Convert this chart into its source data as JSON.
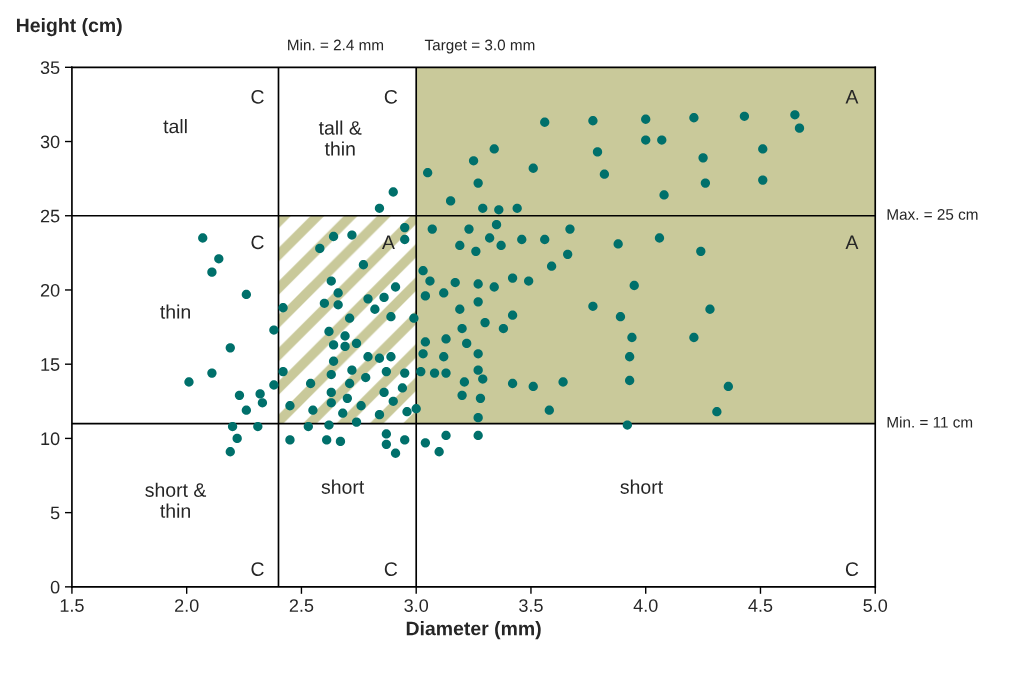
{
  "chart_data": {
    "type": "scatter",
    "xlabel": "Diameter (mm)",
    "ylabel": "Height (cm)",
    "xlim": [
      1.5,
      5.0
    ],
    "ylim": [
      0,
      35
    ],
    "xticks": [
      1.5,
      {
        "value": 2,
        "label": "2.0"
      },
      2.5,
      {
        "value": 3,
        "label": "3.0"
      },
      3.5,
      {
        "value": 4,
        "label": "4.0"
      },
      4.5,
      {
        "value": 5,
        "label": "5.0"
      }
    ],
    "yticks": [
      0,
      5,
      10,
      15,
      20,
      25,
      30,
      35
    ],
    "grid": false,
    "legend": false,
    "marker": "circle",
    "ref_lines": [
      {
        "axis": "x",
        "value": 2.4,
        "label": "Min. = 2.4 mm",
        "color": "#000000"
      },
      {
        "axis": "x",
        "value": 3.0,
        "label": "Target = 3.0 mm",
        "color": "#000000"
      },
      {
        "axis": "y",
        "value": 25,
        "label": "Max. = 25 cm",
        "color": "#000000"
      },
      {
        "axis": "y",
        "value": 11,
        "label": "Min. = 11 cm",
        "color": "#000000"
      }
    ],
    "bands": [
      {
        "axis": "x",
        "from": 3.0,
        "to": 5.0,
        "color": "#c9c99a"
      },
      {
        "axis": "x",
        "from": 2.4,
        "to": 3.0,
        "color": "#c9c99a"
      }
    ],
    "annotations": [
      "tall",
      "C",
      "tall &\nthin",
      "C",
      "A",
      "C",
      "A",
      "A",
      "thin",
      "short &\nthin",
      "short",
      "short",
      "C",
      "C",
      "C"
    ],
    "series": [
      {
        "color": "#00706b",
        "x": [
          2.07,
          2.14,
          2.11,
          2.26,
          2.38,
          2.19,
          2.11,
          2.01,
          2.23,
          2.32,
          2.33,
          2.26,
          2.38,
          2.2,
          2.31,
          2.22,
          2.19,
          2.42,
          2.42,
          2.45,
          2.45,
          2.58,
          2.64,
          2.72,
          2.77,
          2.63,
          2.66,
          2.6,
          2.66,
          2.71,
          2.79,
          2.82,
          2.86,
          2.91,
          2.89,
          2.95,
          2.95,
          2.99,
          2.62,
          2.69,
          2.64,
          2.69,
          2.74,
          2.64,
          2.79,
          2.84,
          2.89,
          2.72,
          2.63,
          2.54,
          2.71,
          2.78,
          2.87,
          2.95,
          2.63,
          2.7,
          2.86,
          2.94,
          2.63,
          2.76,
          2.9,
          2.55,
          2.68,
          2.84,
          2.96,
          3.0,
          2.53,
          2.62,
          2.74,
          2.61,
          2.67,
          2.87,
          2.87,
          2.95,
          2.91,
          2.9,
          2.84,
          3.05,
          3.27,
          3.15,
          3.29,
          3.36,
          3.44,
          3.51,
          3.25,
          3.34,
          3.07,
          3.23,
          3.35,
          3.32,
          3.19,
          3.37,
          3.46,
          3.56,
          3.26,
          3.03,
          3.06,
          3.17,
          3.27,
          3.34,
          3.42,
          3.49,
          3.59,
          3.04,
          3.12,
          3.27,
          3.19,
          3.42,
          3.3,
          3.38,
          3.2,
          3.04,
          3.13,
          3.22,
          3.03,
          3.12,
          3.27,
          3.02,
          3.08,
          3.13,
          3.27,
          3.21,
          3.29,
          3.42,
          3.51,
          3.64,
          3.2,
          3.28,
          3.58,
          3.27,
          3.27,
          3.13,
          3.04,
          3.1,
          3.56,
          3.77,
          4.0,
          4.21,
          4.43,
          4.65,
          4.67,
          4.0,
          4.07,
          3.79,
          4.25,
          4.51,
          3.82,
          4.26,
          4.51,
          4.08,
          3.67,
          3.88,
          4.06,
          4.24,
          3.66,
          3.95,
          3.77,
          3.89,
          4.28,
          3.94,
          4.21,
          3.93,
          3.93,
          4.36,
          4.31,
          3.92
        ],
        "values": [
          23.5,
          22.1,
          21.2,
          19.7,
          17.3,
          16.1,
          14.4,
          13.8,
          12.9,
          13.0,
          12.4,
          11.9,
          13.6,
          10.8,
          10.8,
          10.0,
          9.1,
          18.8,
          14.5,
          12.2,
          9.9,
          22.8,
          23.6,
          23.7,
          21.7,
          20.6,
          19.8,
          19.1,
          19.0,
          18.1,
          19.4,
          18.7,
          19.5,
          20.2,
          18.2,
          24.2,
          23.4,
          18.1,
          17.2,
          16.9,
          16.3,
          16.2,
          16.4,
          15.2,
          15.5,
          15.4,
          15.5,
          14.6,
          14.3,
          13.7,
          13.7,
          14.1,
          14.5,
          14.4,
          13.1,
          12.7,
          13.1,
          13.4,
          12.4,
          12.2,
          12.5,
          11.9,
          11.7,
          11.6,
          11.8,
          12.0,
          10.8,
          10.9,
          11.1,
          9.9,
          9.8,
          10.3,
          9.6,
          9.9,
          9.0,
          26.6,
          25.5,
          27.9,
          27.2,
          26.0,
          25.5,
          25.4,
          25.5,
          28.2,
          28.7,
          29.5,
          24.1,
          24.1,
          24.4,
          23.5,
          23.0,
          23.0,
          23.4,
          23.4,
          22.6,
          21.3,
          20.6,
          20.5,
          20.4,
          20.2,
          20.8,
          20.6,
          21.6,
          19.6,
          19.8,
          19.2,
          18.7,
          18.3,
          17.8,
          17.4,
          17.4,
          16.5,
          16.7,
          16.4,
          15.7,
          15.5,
          15.7,
          14.5,
          14.4,
          14.4,
          14.6,
          13.8,
          14.0,
          13.7,
          13.5,
          13.8,
          12.9,
          12.7,
          11.9,
          11.4,
          10.2,
          10.2,
          9.7,
          9.1,
          31.3,
          31.4,
          31.5,
          31.6,
          31.7,
          31.8,
          30.9,
          30.1,
          30.1,
          29.3,
          28.9,
          29.5,
          27.8,
          27.2,
          27.4,
          26.4,
          24.1,
          23.1,
          23.5,
          22.6,
          22.4,
          20.3,
          18.9,
          18.2,
          18.7,
          16.8,
          16.8,
          15.5,
          13.9,
          13.5,
          11.8,
          10.9
        ]
      }
    ]
  }
}
